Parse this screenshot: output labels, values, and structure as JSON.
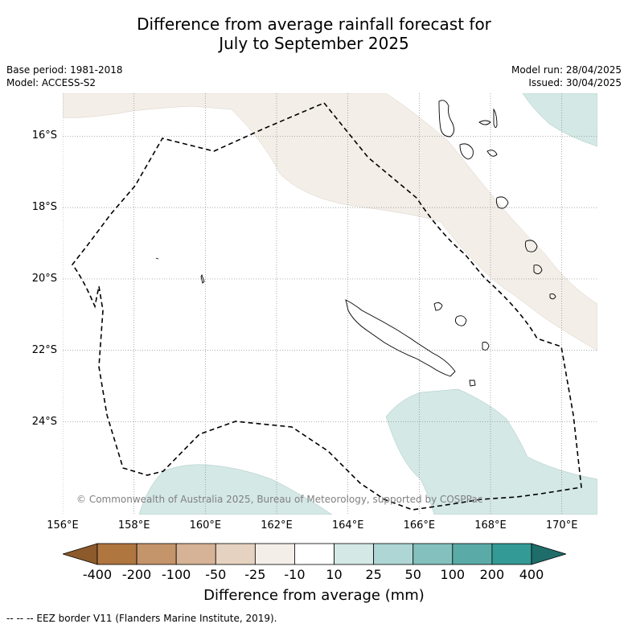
{
  "title_line1": "Difference from average rainfall forecast for",
  "title_line2": "July to September 2025",
  "base_period": "Base period: 1981-2018",
  "model": "Model: ACCESS-S2",
  "model_run": "Model run: 28/04/2025",
  "issued": "Issued: 30/04/2025",
  "credit": "© Commonwealth of Australia 2025, Bureau of Meteorology, supported by COSPPac",
  "footnote": "--  --  -- EEZ border V11 (Flanders Marine Institute, 2019).",
  "map": {
    "lon_range": [
      156,
      171
    ],
    "lat_range": [
      -14.8,
      -26.6
    ],
    "lat_ticks": [
      {
        "value": -16,
        "label": "16°S"
      },
      {
        "value": -18,
        "label": "18°S"
      },
      {
        "value": -20,
        "label": "20°S"
      },
      {
        "value": -22,
        "label": "22°S"
      },
      {
        "value": -24,
        "label": "24°S"
      }
    ],
    "lon_ticks": [
      {
        "value": 156,
        "label": "156°E"
      },
      {
        "value": 158,
        "label": "158°E"
      },
      {
        "value": 160,
        "label": "160°E"
      },
      {
        "value": 162,
        "label": "162°E"
      },
      {
        "value": 164,
        "label": "164°E"
      },
      {
        "value": 166,
        "label": "166°E"
      },
      {
        "value": 168,
        "label": "168°E"
      },
      {
        "value": 170,
        "label": "170°E"
      }
    ],
    "colors": {
      "dry_slight": "#f3eee8",
      "wet_slight": "#d4e8e6",
      "coast": "#000000",
      "eez": "#000000"
    }
  },
  "colorbar": {
    "title": "Difference from average (mm)",
    "ticks": [
      "-400",
      "-200",
      "-100",
      "-50",
      "-25",
      "-10",
      "10",
      "25",
      "50",
      "100",
      "200",
      "400"
    ],
    "colors": [
      "#8c5a2b",
      "#b07640",
      "#c4946a",
      "#d6b396",
      "#e6d2c0",
      "#f3eee8",
      "#ffffff",
      "#d4e8e6",
      "#aed6d4",
      "#84c1be",
      "#5aaba7",
      "#349a95",
      "#1e6d6a"
    ]
  }
}
